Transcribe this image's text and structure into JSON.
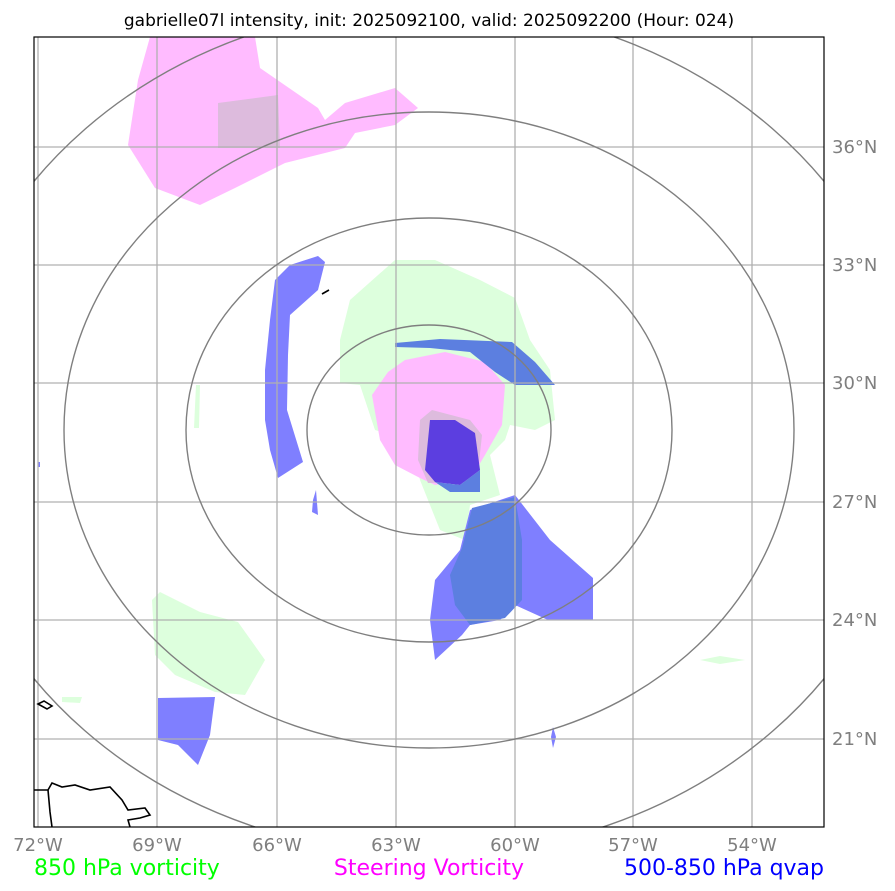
{
  "title": "gabrielle07l intensity, init: 2025092100, valid: 2025092200 (Hour: 024)",
  "lon_labels": [
    "72°W",
    "69°W",
    "66°W",
    "63°W",
    "60°W",
    "57°W",
    "54°W"
  ],
  "lat_labels": [
    "36°N",
    "33°N",
    "30°N",
    "27°N",
    "24°N",
    "21°N"
  ],
  "legend": {
    "left": "850 hPa vorticity",
    "center": "Steering Vorticity",
    "right": "500-850 hPa qvap"
  },
  "colors": {
    "vorticity_850": "#00ff00",
    "steering_vorticity": "#ff00ff",
    "qvap_500_850": "#0000ff",
    "range_rings": "#7f7f7f",
    "gridlines": "#b0b0b0",
    "coastline": "#000000"
  }
}
